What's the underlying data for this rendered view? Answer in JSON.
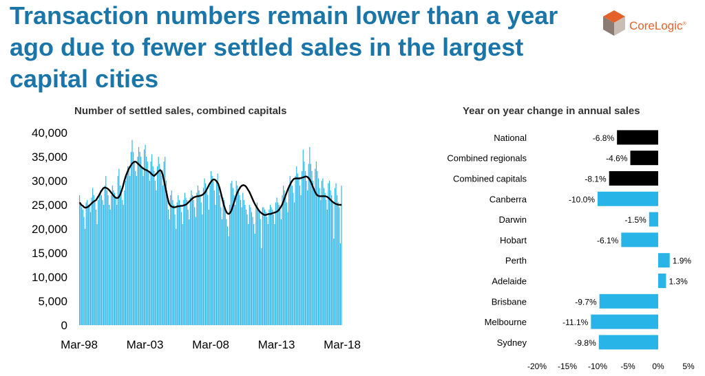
{
  "headline": "Transaction numbers remain lower than a year ago due to fewer settled sales in the largest capital cities",
  "logo": {
    "text": "CoreLogic",
    "tm": "®",
    "colors": [
      "#e5612a",
      "#8a7b73",
      "#c9bdb5"
    ]
  },
  "colors": {
    "headline": "#1a75a8",
    "bars": "#29b4e8",
    "trend": "#000000",
    "aggregate_bars": "#000000"
  },
  "chart_data": [
    {
      "type": "bar",
      "title": "Number of settled sales, combined capitals",
      "x_tick_labels": [
        "Mar-98",
        "Mar-03",
        "Mar-08",
        "Mar-13",
        "Mar-18"
      ],
      "y_tick_labels": [
        "0",
        "5,000",
        "10,000",
        "15,000",
        "20,000",
        "25,000",
        "30,000",
        "35,000",
        "40,000"
      ],
      "ylim": [
        0,
        40000
      ],
      "grid": false,
      "monthly_x_range": [
        "Mar-98",
        "Mar-18"
      ],
      "series": [
        {
          "type": "bar",
          "values": [
            27000,
            25000,
            24500,
            24000,
            22500,
            20000,
            25500,
            26000,
            25000,
            24800,
            23500,
            26500,
            28500,
            27000,
            26000,
            24000,
            21000,
            26000,
            27500,
            28000,
            27000,
            26000,
            25000,
            29000,
            31000,
            28000,
            27000,
            25000,
            24000,
            27000,
            29000,
            28000,
            27500,
            26500,
            25000,
            31000,
            32500,
            29000,
            28000,
            26000,
            25000,
            28000,
            30000,
            31000,
            33000,
            33000,
            31000,
            36000,
            38500,
            36000,
            34000,
            32000,
            31000,
            35000,
            37000,
            36000,
            35000,
            33000,
            31000,
            36500,
            37500,
            35000,
            34000,
            32000,
            30000,
            34000,
            35500,
            33000,
            32000,
            30000,
            28000,
            33000,
            35000,
            33500,
            32500,
            31000,
            29000,
            34000,
            35000,
            30000,
            27000,
            24000,
            22000,
            27000,
            28000,
            26000,
            25000,
            23000,
            20000,
            25500,
            27000,
            26000,
            25000,
            23500,
            21000,
            26000,
            27500,
            26500,
            26000,
            24000,
            22000,
            26500,
            28000,
            27000,
            26000,
            24500,
            22500,
            27500,
            29000,
            28000,
            27000,
            25500,
            23000,
            28500,
            30500,
            29500,
            28500,
            27000,
            24000,
            29000,
            32000,
            31000,
            30000,
            28000,
            25000,
            30000,
            31500,
            29000,
            27000,
            24500,
            22000,
            26500,
            26000,
            24000,
            22000,
            20500,
            18500,
            25000,
            29500,
            30000,
            28500,
            27000,
            25000,
            30000,
            29000,
            28000,
            27000,
            26000,
            24500,
            27500,
            26000,
            25000,
            24000,
            23000,
            21000,
            25000,
            24500,
            23500,
            22500,
            21000,
            19000,
            24500,
            25500,
            24000,
            23500,
            22000,
            16000,
            24500,
            24500,
            24000,
            23500,
            22500,
            21000,
            24000,
            25000,
            24500,
            24000,
            23000,
            21000,
            25500,
            26500,
            25500,
            25000,
            24000,
            22000,
            27000,
            29000,
            28000,
            27000,
            25500,
            23500,
            29000,
            31000,
            30000,
            29000,
            27500,
            25500,
            31000,
            33000,
            31500,
            30500,
            29000,
            27000,
            32000,
            36500,
            34000,
            32000,
            30000,
            28000,
            33500,
            37000,
            33500,
            32000,
            30000,
            28000,
            32500,
            34000,
            32000,
            30500,
            28500,
            26000,
            30000,
            30500,
            28500,
            27500,
            26000,
            24000,
            29500,
            30000,
            28000,
            27000,
            25500,
            18000,
            28500,
            29500,
            27000,
            25500,
            24500,
            17000,
            29000
          ]
        },
        {
          "type": "line",
          "values": [
            25500,
            25000,
            24800,
            24500,
            24400,
            24500,
            24700,
            25000,
            25300,
            25600,
            25800,
            26000,
            26500,
            27000,
            27600,
            28100,
            28500,
            28600,
            28500,
            28300,
            28000,
            27600,
            27200,
            26800,
            26500,
            26400,
            26500,
            27000,
            27800,
            28800,
            30000,
            31000,
            31800,
            32500,
            33000,
            33500,
            33800,
            34000,
            33900,
            33600,
            33300,
            33000,
            32700,
            32500,
            32300,
            32200,
            32000,
            31800,
            31500,
            31200,
            31000,
            31300,
            31600,
            32000,
            32200,
            32000,
            31000,
            29500,
            28000,
            26500,
            25300,
            24800,
            24600,
            24500,
            24500,
            24600,
            24700,
            24700,
            24800,
            24800,
            24900,
            25000,
            25200,
            25500,
            25800,
            26100,
            26400,
            26600,
            26700,
            26800,
            26800,
            26900,
            27000,
            27200,
            27500,
            28000,
            28600,
            29200,
            29700,
            30100,
            30300,
            30200,
            29900,
            29400,
            28500,
            27300,
            26000,
            24800,
            23900,
            23300,
            23100,
            23300,
            23900,
            24800,
            25800,
            26800,
            27600,
            28200,
            28700,
            29000,
            29100,
            29000,
            28700,
            28200,
            27700,
            27000,
            26300,
            25600,
            25000,
            24500,
            24000,
            23600,
            23300,
            23100,
            22900,
            22900,
            23000,
            23100,
            23100,
            23200,
            23300,
            23400,
            23500,
            23700,
            24000,
            24500,
            25000,
            25800,
            26700,
            27500,
            28300,
            29000,
            29600,
            30100,
            30400,
            30500,
            30500,
            30500,
            30500,
            30600,
            30700,
            30800,
            30900,
            30800,
            30500,
            30000,
            29300,
            28500,
            27800,
            27200,
            26900,
            26800,
            26800,
            26800,
            26800,
            26800,
            26700,
            26500,
            26200,
            25900,
            25600,
            25400,
            25200,
            25100,
            25000,
            25000,
            25000
          ]
        }
      ]
    },
    {
      "type": "bar",
      "orientation": "horizontal",
      "title": "Year on year change in annual sales",
      "categories": [
        "National",
        "Combined regionals",
        "Combined capitals",
        "Canberra",
        "Darwin",
        "Hobart",
        "Perth",
        "Adelaide",
        "Brisbane",
        "Melbourne",
        "Sydney"
      ],
      "values": [
        -6.8,
        -4.6,
        -8.1,
        -10.0,
        -1.5,
        -6.1,
        1.9,
        1.3,
        -9.7,
        -11.1,
        -9.8
      ],
      "labels": [
        "-6.8%",
        "-4.6%",
        "-8.1%",
        "-10.0%",
        "-1.5%",
        "-6.1%",
        "1.9%",
        "1.3%",
        "-9.7%",
        "-11.1%",
        "-9.8%"
      ],
      "bar_colors": [
        "#000000",
        "#000000",
        "#000000",
        "#29b4e8",
        "#29b4e8",
        "#29b4e8",
        "#29b4e8",
        "#29b4e8",
        "#29b4e8",
        "#29b4e8",
        "#29b4e8"
      ],
      "x_tick_labels": [
        "-20%",
        "-15%",
        "-10%",
        "-5%",
        "0%",
        "5%"
      ],
      "xlim": [
        -20,
        5
      ],
      "grid": false
    }
  ]
}
